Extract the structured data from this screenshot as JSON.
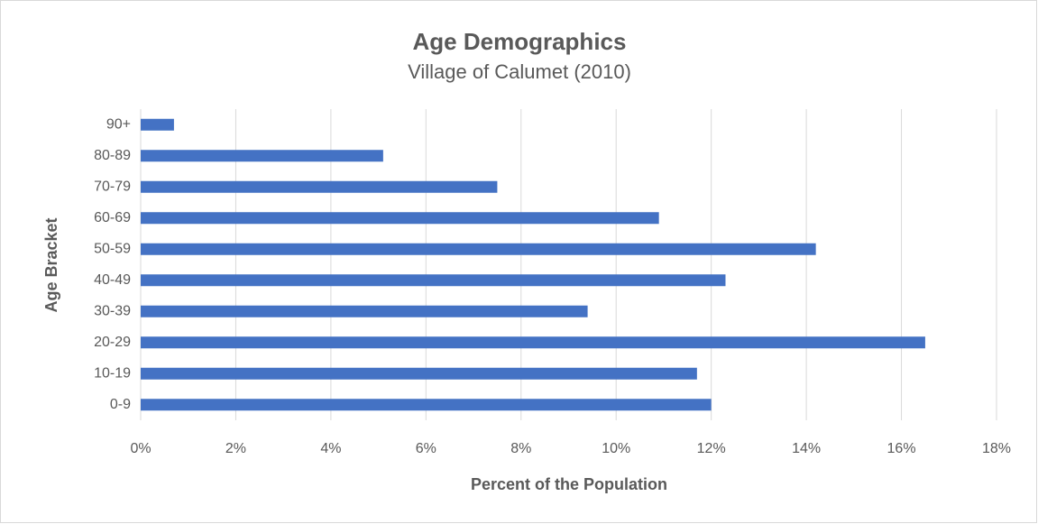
{
  "chart_data": {
    "type": "hbar",
    "title": "Age Demographics",
    "subtitle": "Village of Calumet (2010)",
    "x_label": "Percent of the Population",
    "y_label": "Age Bracket",
    "categories": [
      "0-9",
      "10-19",
      "20-29",
      "30-39",
      "40-49",
      "50-59",
      "60-69",
      "70-79",
      "80-89",
      "90+"
    ],
    "values": [
      12.0,
      11.7,
      16.5,
      9.4,
      12.3,
      14.2,
      10.9,
      7.5,
      5.1,
      0.7
    ],
    "color": "#4472c4",
    "xlim": [
      0,
      18
    ],
    "xticks": [
      {
        "value": 0,
        "label": "0%"
      },
      {
        "value": 2,
        "label": "2%"
      },
      {
        "value": 4,
        "label": "4%"
      },
      {
        "value": 6,
        "label": "6%"
      },
      {
        "value": 8,
        "label": "8%"
      },
      {
        "value": 10,
        "label": "10%"
      },
      {
        "value": 12,
        "label": "12%"
      },
      {
        "value": 14,
        "label": "14%"
      },
      {
        "value": 16,
        "label": "16%"
      },
      {
        "value": 18,
        "label": "18%"
      }
    ],
    "grid": true
  }
}
